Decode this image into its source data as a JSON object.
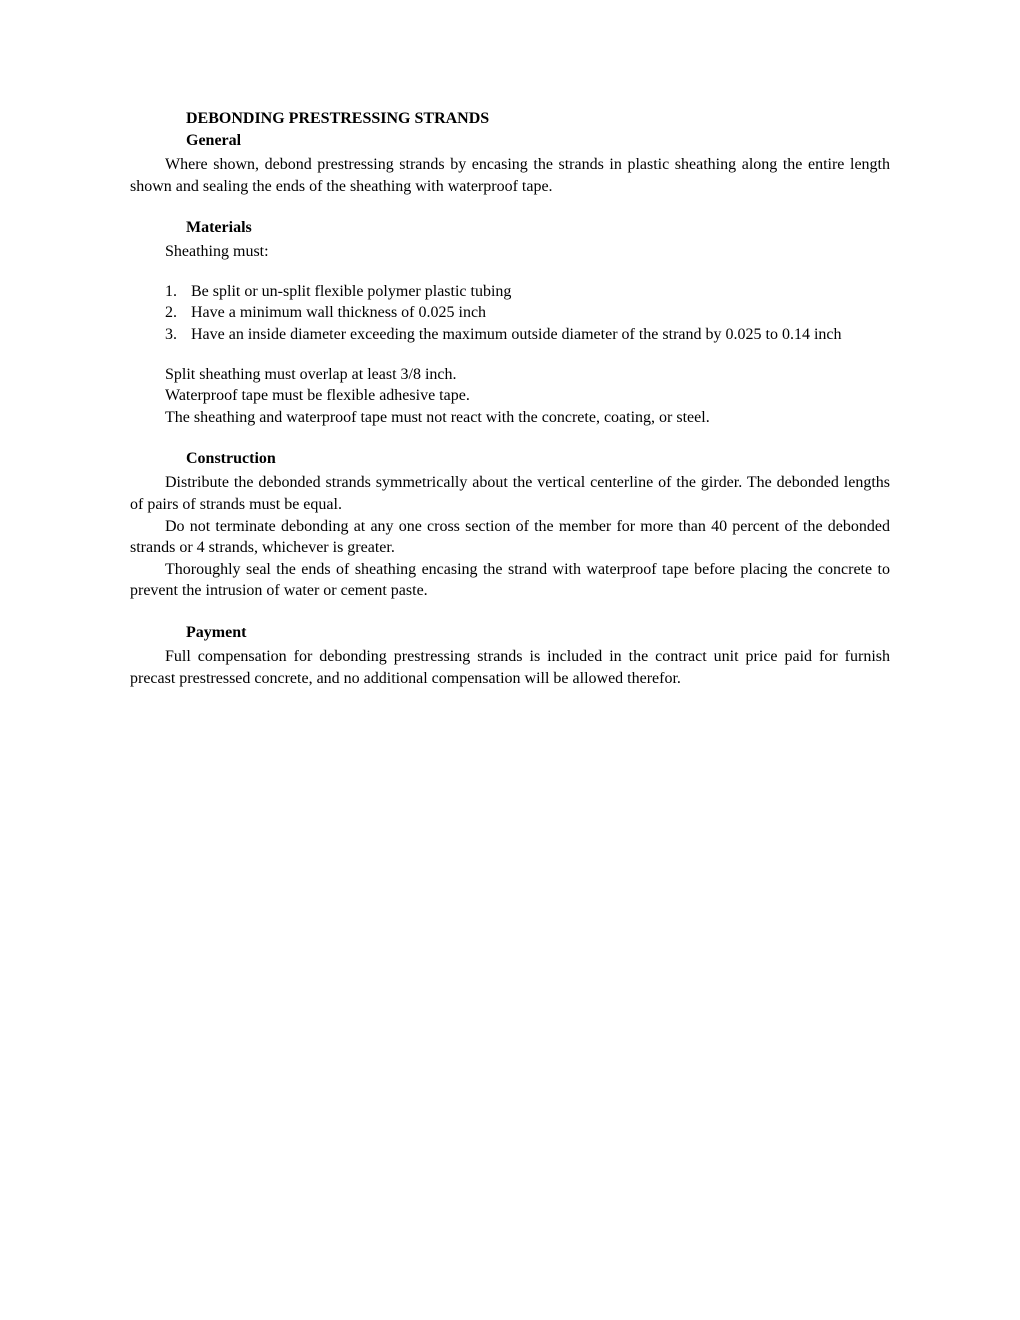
{
  "title": "DEBONDING PRESTRESSING STRANDS",
  "general": {
    "heading": "General",
    "para1": "Where shown, debond prestressing strands by encasing the strands in plastic sheathing along the entire length shown and sealing the ends of the sheathing with waterproof tape."
  },
  "materials": {
    "heading": "Materials",
    "intro": "Sheathing must:",
    "list": [
      {
        "num": "1.",
        "text": "Be split or un-split flexible polymer plastic tubing"
      },
      {
        "num": "2.",
        "text": "Have a minimum wall thickness of 0.025 inch"
      },
      {
        "num": "3.",
        "text": "Have an inside diameter exceeding the maximum outside diameter of the strand by 0.025 to 0.14 inch"
      }
    ],
    "p1": "Split sheathing must overlap at least 3/8 inch.",
    "p2": "Waterproof tape must be flexible adhesive tape.",
    "p3": "The sheathing and waterproof tape must not react with the concrete, coating, or steel."
  },
  "construction": {
    "heading": "Construction",
    "p1": "Distribute the debonded strands symmetrically about the vertical centerline of the girder. The debonded lengths of pairs of strands must be equal.",
    "p2": "Do not terminate debonding at any one cross section of the member for more than 40 percent of the debonded strands or 4 strands, whichever is greater.",
    "p3": "Thoroughly seal the ends of sheathing encasing the strand with waterproof tape before placing the concrete to prevent the intrusion of water or cement paste."
  },
  "payment": {
    "heading": "Payment",
    "p1": "Full compensation for debonding prestressing strands is included in the contract unit price paid for furnish precast prestressed concrete, and no additional compensation will be allowed therefor."
  }
}
